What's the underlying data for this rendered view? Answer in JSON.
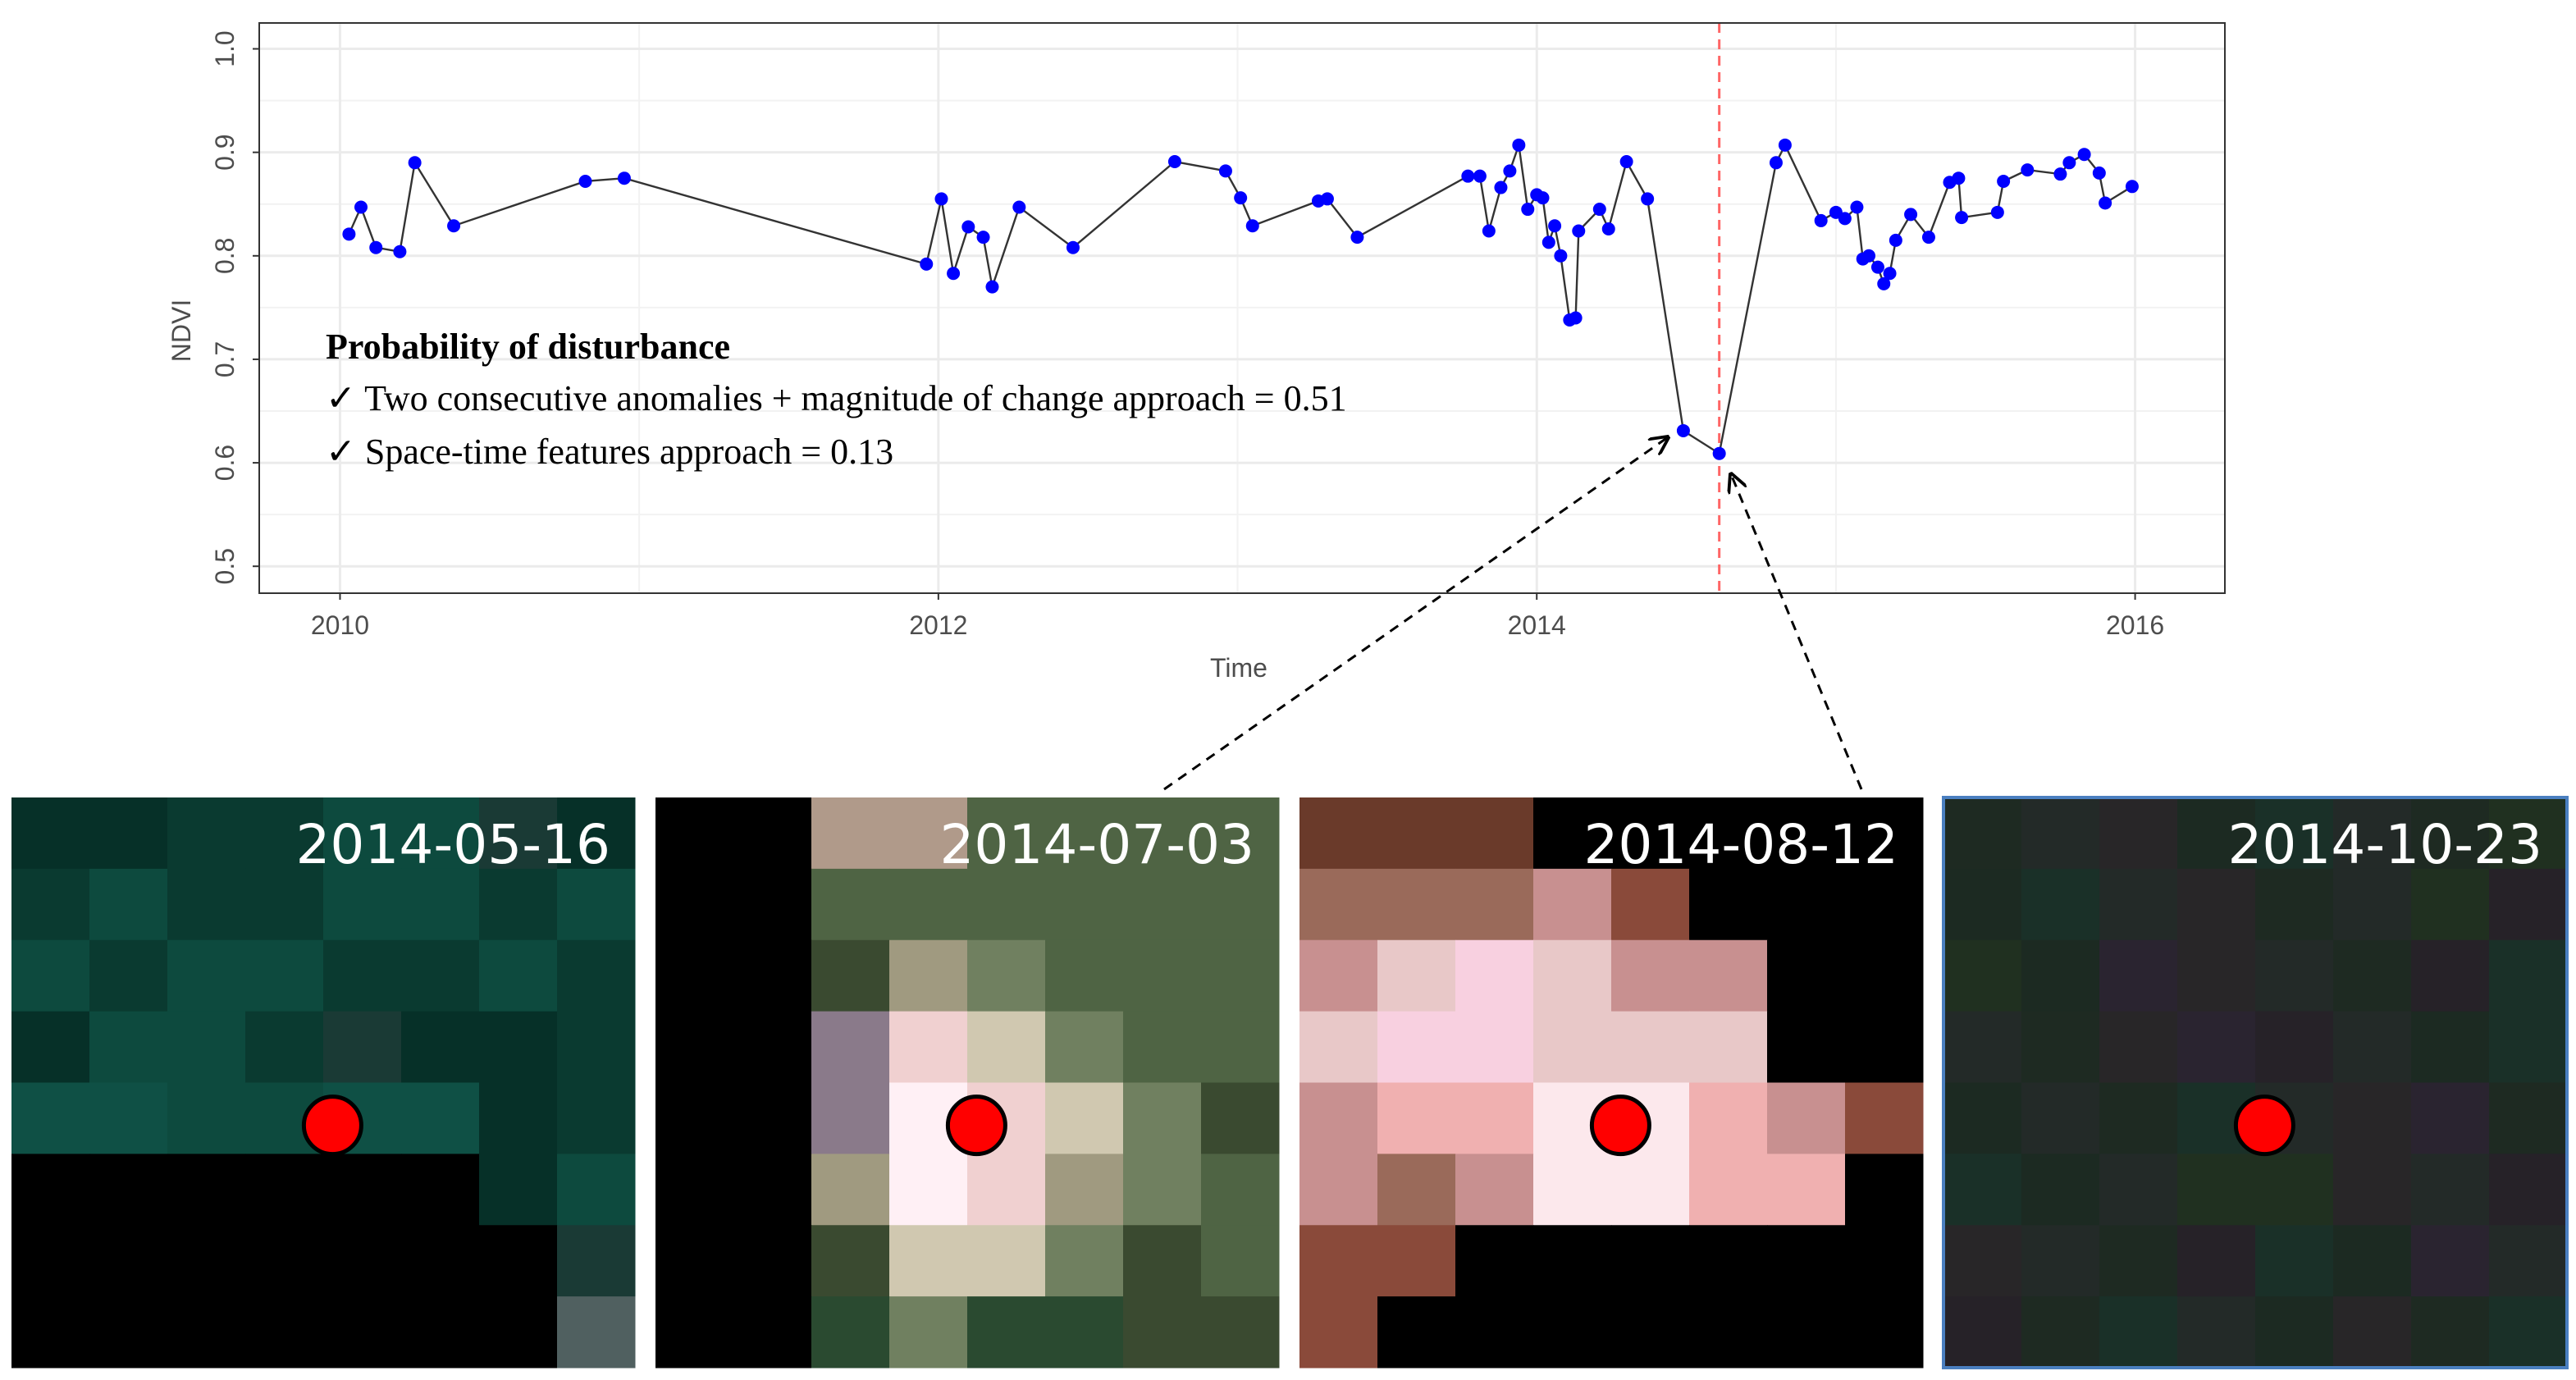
{
  "chart_data": {
    "type": "line",
    "x_label": "Time",
    "y_label": "NDVI",
    "annotation_title": "Probability of  disturbance",
    "annotations": [
      "✓ Two consecutive anomalies + magnitude of change approach = 0.51",
      "✓ Space-time features approach   = 0.13"
    ],
    "x": [
      2010.03,
      2010.07,
      2010.12,
      2010.2,
      2010.25,
      2010.38,
      2010.82,
      2010.95,
      2011.96,
      2012.01,
      2012.05,
      2012.1,
      2012.15,
      2012.18,
      2012.27,
      2012.45,
      2012.79,
      2012.96,
      2013.01,
      2013.05,
      2013.27,
      2013.3,
      2013.4,
      2013.77,
      2013.81,
      2013.84,
      2013.88,
      2013.91,
      2013.94,
      2013.97,
      2014.0,
      2014.02,
      2014.04,
      2014.06,
      2014.08,
      2014.11,
      2014.13,
      2014.14,
      2014.21,
      2014.24,
      2014.3,
      2014.37,
      2014.49,
      2014.61,
      2014.8,
      2014.83,
      2014.95,
      2015.0,
      2015.03,
      2015.07,
      2015.09,
      2015.11,
      2015.14,
      2015.16,
      2015.18,
      2015.2,
      2015.25,
      2015.31,
      2015.38,
      2015.41,
      2015.42,
      2015.54,
      2015.56,
      2015.64,
      2015.75,
      2015.78,
      2015.83,
      2015.88,
      2015.9,
      2015.99
    ],
    "series": [
      {
        "name": "NDVI",
        "color": "#0000ff",
        "line_color": "#333333",
        "values": [
          0.821,
          0.847,
          0.808,
          0.804,
          0.89,
          0.829,
          0.872,
          0.875,
          0.792,
          0.855,
          0.783,
          0.828,
          0.818,
          0.77,
          0.847,
          0.808,
          0.891,
          0.882,
          0.856,
          0.829,
          0.853,
          0.855,
          0.818,
          0.877,
          0.877,
          0.824,
          0.866,
          0.882,
          0.907,
          0.845,
          0.859,
          0.856,
          0.813,
          0.829,
          0.8,
          0.738,
          0.74,
          0.824,
          0.845,
          0.826,
          0.891,
          0.855,
          0.631,
          0.609,
          0.89,
          0.907,
          0.834,
          0.842,
          0.836,
          0.847,
          0.797,
          0.8,
          0.789,
          0.773,
          0.783,
          0.815,
          0.84,
          0.818,
          0.871,
          0.875,
          0.837,
          0.842,
          0.872,
          0.883,
          0.879,
          0.89,
          0.898,
          0.88,
          0.851,
          0.867
        ]
      }
    ],
    "vline": 2014.61,
    "vline_color": "#ff6666",
    "xlim": [
      2009.73,
      2016.3
    ],
    "xticks": [
      2010,
      2012,
      2014,
      2016
    ],
    "ylim": [
      0.474,
      1.025
    ],
    "yticks": [
      0.5,
      0.6,
      0.7,
      0.8,
      0.9,
      {
        "value": 1,
        "label": "1.0"
      }
    ],
    "grid": true,
    "minor_grid": true
  },
  "panels": [
    {
      "date": "2014-05-16"
    },
    {
      "date": "2014-07-03"
    },
    {
      "date": "2014-08-12"
    },
    {
      "date": "2014-10-23"
    }
  ]
}
